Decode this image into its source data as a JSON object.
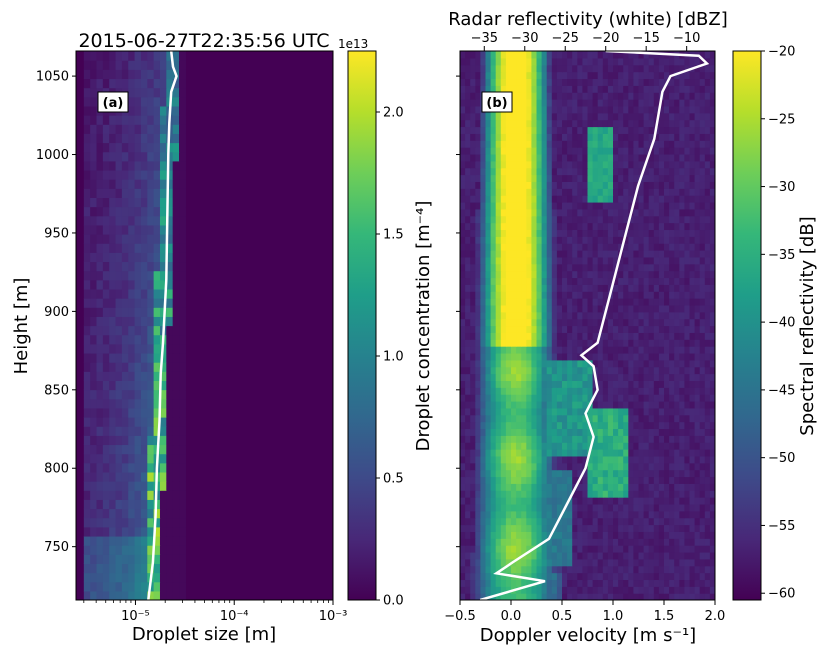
{
  "figure": {
    "title": "2015-06-27T22:35:56 UTC"
  },
  "colors": {
    "profile_line": "#ffffff",
    "viridis": [
      "#440154",
      "#482878",
      "#3e4a89",
      "#31688e",
      "#26828e",
      "#1f9e89",
      "#35b779",
      "#6ece58",
      "#b5de2b",
      "#fde725"
    ]
  },
  "chart_data": [
    {
      "type": "heatmap",
      "panel_label": "(a)",
      "xlabel": "Droplet size [m]",
      "ylabel": "Height [m]",
      "x_scale": "log",
      "xlim": [
        2.5e-06,
        0.001
      ],
      "ylim": [
        716,
        1066
      ],
      "x_ticks": [
        1e-05,
        0.0001,
        0.001
      ],
      "x_tick_labels": [
        "10⁻⁵",
        "10⁻⁴",
        "10⁻³"
      ],
      "y_ticks": [
        750,
        800,
        850,
        900,
        950,
        1000,
        1050
      ],
      "y_tick_labels": [
        "750",
        "800",
        "850",
        "900",
        "950",
        "1000",
        "1050"
      ],
      "colorbar": {
        "label": "Droplet concentration [m⁻⁴]",
        "offset_text": "1e13",
        "range": [
          0,
          2.25
        ],
        "ticks": [
          0.0,
          0.5,
          1.0,
          1.5,
          2.0
        ],
        "tick_labels": [
          "0.0",
          "0.5",
          "1.0",
          "1.5",
          "2.0"
        ]
      },
      "overlay_line": {
        "description": "white profile line (droplet size vs height)",
        "points": [
          [
            1.35e-05,
            716
          ],
          [
            1.5e-05,
            740
          ],
          [
            1.6e-05,
            770
          ],
          [
            1.65e-05,
            800
          ],
          [
            1.75e-05,
            830
          ],
          [
            1.8e-05,
            860
          ],
          [
            1.9e-05,
            880
          ],
          [
            2.05e-05,
            920
          ],
          [
            2.1e-05,
            960
          ],
          [
            2.15e-05,
            1000
          ],
          [
            2.2e-05,
            1020
          ],
          [
            2.3e-05,
            1040
          ],
          [
            2.6e-05,
            1050
          ],
          [
            2.4e-05,
            1056
          ],
          [
            2.3e-05,
            1066
          ]
        ]
      }
    },
    {
      "type": "heatmap",
      "panel_label": "(b)",
      "xlabel": "Doppler velocity [m s⁻¹]",
      "top_xlabel": "Radar reflectivity (white) [dBZ]",
      "xlim": [
        -0.5,
        2.0
      ],
      "ylim": [
        716,
        1066
      ],
      "x_ticks": [
        -0.5,
        0.0,
        0.5,
        1.0,
        1.5,
        2.0
      ],
      "x_tick_labels": [
        "−0.5",
        "0.0",
        "0.5",
        "1.0",
        "1.5",
        "2.0"
      ],
      "top_xlim": [
        -38,
        -6.5
      ],
      "top_x_ticks": [
        -35,
        -30,
        -25,
        -20,
        -15,
        -10
      ],
      "top_x_tick_labels": [
        "−35",
        "−30",
        "−25",
        "−20",
        "−15",
        "−10"
      ],
      "colorbar": {
        "label": "Spectral reflectivity [dB]",
        "range": [
          -60.5,
          -20
        ],
        "ticks": [
          -20,
          -25,
          -30,
          -35,
          -40,
          -45,
          -50,
          -55,
          -60
        ],
        "tick_labels": [
          "−20",
          "−25",
          "−30",
          "−35",
          "−40",
          "−45",
          "−50",
          "−55",
          "−60"
        ]
      },
      "overlay_line": {
        "description": "white radar reflectivity profile in dBZ vs height",
        "points": [
          [
            -35.5,
            716
          ],
          [
            -31.5,
            722
          ],
          [
            -27.5,
            728
          ],
          [
            -33.5,
            733
          ],
          [
            -31.5,
            740
          ],
          [
            -27,
            755
          ],
          [
            -25,
            775
          ],
          [
            -22.5,
            800
          ],
          [
            -21.5,
            820
          ],
          [
            -22.5,
            835
          ],
          [
            -21,
            850
          ],
          [
            -21.5,
            865
          ],
          [
            -23,
            872
          ],
          [
            -21,
            880
          ],
          [
            -19.5,
            910
          ],
          [
            -18,
            940
          ],
          [
            -16,
            980
          ],
          [
            -14,
            1010
          ],
          [
            -13,
            1040
          ],
          [
            -12,
            1050
          ],
          [
            -7.5,
            1058
          ],
          [
            -8.5,
            1063
          ],
          [
            -20,
            1066
          ]
        ]
      }
    }
  ]
}
